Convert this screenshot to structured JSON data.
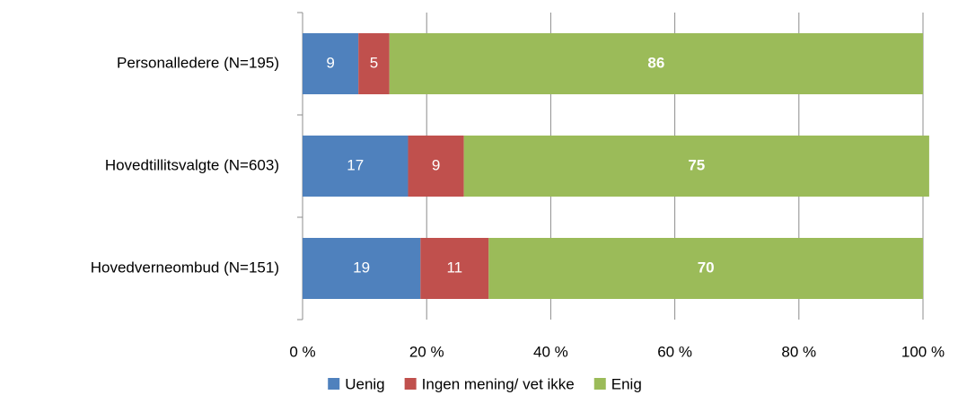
{
  "chart_data": {
    "type": "stacked-bar-horizontal",
    "categories": [
      "Personalledere (N=195)",
      "Hovedtillitsvalgte (N=603)",
      "Hovedverneombud (N=151)"
    ],
    "series": [
      {
        "name": "Uenig",
        "color": "#4f81bd",
        "values": [
          9,
          17,
          19
        ]
      },
      {
        "name": "Ingen mening/ vet ikke",
        "color": "#c0504d",
        "values": [
          5,
          9,
          11
        ]
      },
      {
        "name": "Enig",
        "color": "#9bbb59",
        "values": [
          86,
          75,
          70
        ]
      }
    ],
    "xlim": [
      0,
      100
    ],
    "xticks": [
      {
        "value": 0,
        "label": "0 %"
      },
      {
        "value": 20,
        "label": "20 %"
      },
      {
        "value": 40,
        "label": "40 %"
      },
      {
        "value": 60,
        "label": "60 %"
      },
      {
        "value": 80,
        "label": "80 %"
      },
      {
        "value": 100,
        "label": "100 %"
      }
    ],
    "grid": true,
    "legend": "bottom"
  }
}
